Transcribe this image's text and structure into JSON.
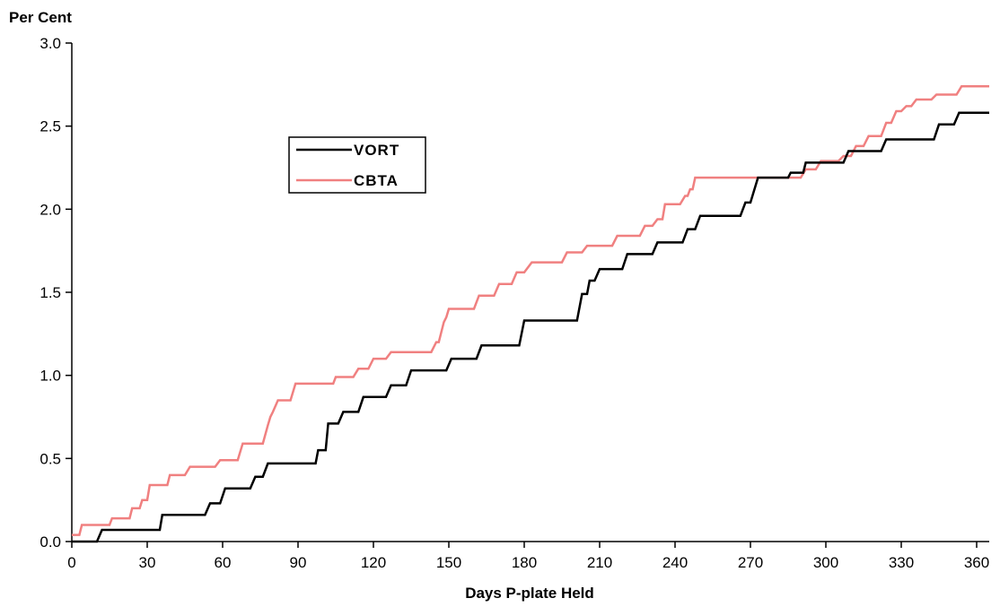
{
  "chart_data": {
    "type": "line",
    "step": true,
    "ylabel": "Per  Cent",
    "xlabel": "Days  P-plate  Held",
    "xlim": [
      0,
      365
    ],
    "ylim": [
      0,
      3.0
    ],
    "xticks": [
      0,
      30,
      60,
      90,
      120,
      150,
      180,
      210,
      240,
      270,
      300,
      330,
      360
    ],
    "yticks": [
      "0.0",
      "0.5",
      "1.0",
      "1.5",
      "2.0",
      "2.5",
      "3.0"
    ],
    "grid": false,
    "legend_position": "upper-left-inside",
    "series": [
      {
        "name": "VORT",
        "color": "#000000",
        "points": [
          [
            0,
            0
          ],
          [
            10,
            0
          ],
          [
            12,
            0.07
          ],
          [
            35,
            0.07
          ],
          [
            36,
            0.16
          ],
          [
            53,
            0.16
          ],
          [
            55,
            0.23
          ],
          [
            59,
            0.23
          ],
          [
            61,
            0.32
          ],
          [
            71,
            0.32
          ],
          [
            73,
            0.39
          ],
          [
            76,
            0.39
          ],
          [
            78,
            0.47
          ],
          [
            97,
            0.47
          ],
          [
            98,
            0.55
          ],
          [
            101,
            0.55
          ],
          [
            102,
            0.71
          ],
          [
            106,
            0.71
          ],
          [
            108,
            0.78
          ],
          [
            114,
            0.78
          ],
          [
            116,
            0.87
          ],
          [
            125,
            0.87
          ],
          [
            127,
            0.94
          ],
          [
            133,
            0.94
          ],
          [
            135,
            1.03
          ],
          [
            149,
            1.03
          ],
          [
            151,
            1.1
          ],
          [
            161,
            1.1
          ],
          [
            163,
            1.18
          ],
          [
            178,
            1.18
          ],
          [
            180,
            1.33
          ],
          [
            201,
            1.33
          ],
          [
            203,
            1.49
          ],
          [
            205,
            1.49
          ],
          [
            206,
            1.57
          ],
          [
            208,
            1.57
          ],
          [
            210,
            1.64
          ],
          [
            219,
            1.64
          ],
          [
            221,
            1.73
          ],
          [
            231,
            1.73
          ],
          [
            233,
            1.8
          ],
          [
            243,
            1.8
          ],
          [
            245,
            1.88
          ],
          [
            248,
            1.88
          ],
          [
            250,
            1.96
          ],
          [
            266,
            1.96
          ],
          [
            268,
            2.04
          ],
          [
            270,
            2.04
          ],
          [
            273,
            2.19
          ],
          [
            285,
            2.19
          ],
          [
            286,
            2.22
          ],
          [
            291,
            2.22
          ],
          [
            292,
            2.28
          ],
          [
            307,
            2.28
          ],
          [
            309,
            2.35
          ],
          [
            322,
            2.35
          ],
          [
            324,
            2.42
          ],
          [
            343,
            2.42
          ],
          [
            345,
            2.51
          ],
          [
            351,
            2.51
          ],
          [
            353,
            2.58
          ],
          [
            365,
            2.58
          ]
        ]
      },
      {
        "name": "CBTA",
        "color": "#f08080",
        "points": [
          [
            0,
            0.04
          ],
          [
            3,
            0.04
          ],
          [
            4,
            0.1
          ],
          [
            15,
            0.1
          ],
          [
            16,
            0.14
          ],
          [
            23,
            0.14
          ],
          [
            24,
            0.2
          ],
          [
            27,
            0.2
          ],
          [
            28,
            0.25
          ],
          [
            30,
            0.25
          ],
          [
            31,
            0.34
          ],
          [
            38,
            0.34
          ],
          [
            39,
            0.4
          ],
          [
            45,
            0.4
          ],
          [
            47,
            0.45
          ],
          [
            50,
            0.45
          ],
          [
            52,
            0.45
          ],
          [
            57,
            0.45
          ],
          [
            59,
            0.49
          ],
          [
            66,
            0.49
          ],
          [
            68,
            0.59
          ],
          [
            73,
            0.59
          ],
          [
            76,
            0.59
          ],
          [
            78,
            0.7
          ],
          [
            79,
            0.75
          ],
          [
            80,
            0.78
          ],
          [
            82,
            0.85
          ],
          [
            87,
            0.85
          ],
          [
            89,
            0.95
          ],
          [
            104,
            0.95
          ],
          [
            105,
            0.99
          ],
          [
            112,
            0.99
          ],
          [
            114,
            1.04
          ],
          [
            118,
            1.04
          ],
          [
            120,
            1.1
          ],
          [
            125,
            1.1
          ],
          [
            127,
            1.14
          ],
          [
            143,
            1.14
          ],
          [
            145,
            1.2
          ],
          [
            146,
            1.2
          ],
          [
            147,
            1.26
          ],
          [
            148,
            1.32
          ],
          [
            149,
            1.35
          ],
          [
            150,
            1.4
          ],
          [
            160,
            1.4
          ],
          [
            162,
            1.48
          ],
          [
            168,
            1.48
          ],
          [
            170,
            1.55
          ],
          [
            175,
            1.55
          ],
          [
            177,
            1.62
          ],
          [
            180,
            1.62
          ],
          [
            183,
            1.68
          ],
          [
            195,
            1.68
          ],
          [
            197,
            1.74
          ],
          [
            203,
            1.74
          ],
          [
            205,
            1.78
          ],
          [
            215,
            1.78
          ],
          [
            217,
            1.84
          ],
          [
            226,
            1.84
          ],
          [
            228,
            1.9
          ],
          [
            231,
            1.9
          ],
          [
            233,
            1.94
          ],
          [
            235,
            1.94
          ],
          [
            236,
            2.03
          ],
          [
            242,
            2.03
          ],
          [
            244,
            2.08
          ],
          [
            245,
            2.08
          ],
          [
            246,
            2.12
          ],
          [
            247,
            2.12
          ],
          [
            248,
            2.19
          ],
          [
            270,
            2.19
          ],
          [
            280,
            2.19
          ],
          [
            290,
            2.19
          ],
          [
            292,
            2.24
          ],
          [
            296,
            2.24
          ],
          [
            298,
            2.29
          ],
          [
            305,
            2.29
          ],
          [
            307,
            2.32
          ],
          [
            310,
            2.32
          ],
          [
            312,
            2.38
          ],
          [
            315,
            2.38
          ],
          [
            317,
            2.44
          ],
          [
            322,
            2.44
          ],
          [
            324,
            2.52
          ],
          [
            326,
            2.52
          ],
          [
            328,
            2.59
          ],
          [
            330,
            2.59
          ],
          [
            332,
            2.62
          ],
          [
            334,
            2.62
          ],
          [
            336,
            2.66
          ],
          [
            342,
            2.66
          ],
          [
            344,
            2.69
          ],
          [
            352,
            2.69
          ],
          [
            354,
            2.74
          ],
          [
            365,
            2.74
          ]
        ]
      }
    ]
  }
}
